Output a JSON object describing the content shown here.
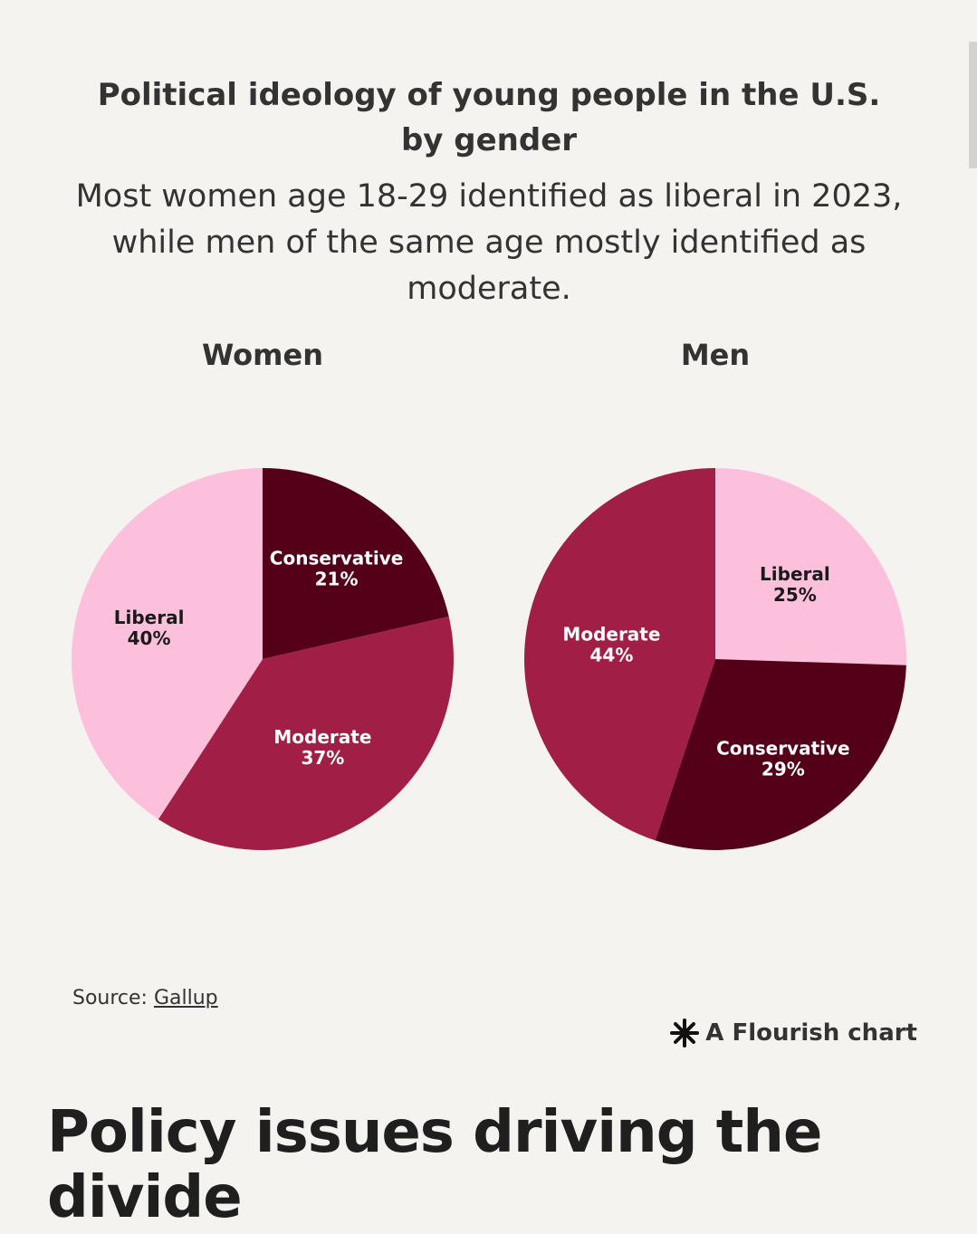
{
  "page": {
    "section_heading": "Policy issues driving the divide"
  },
  "chart_data": {
    "type": "pie",
    "title": "Political ideology of young people in the U.S. by gender",
    "subtitle": "Most women age 18-29 identified as liberal in 2023, while men of the same age mostly identified as moderate.",
    "colors": {
      "Liberal": "#fcc0dc",
      "Moderate": "#a11e46",
      "Conservative": "#540019"
    },
    "pies": [
      {
        "name": "Women",
        "slices": [
          {
            "label": "Conservative",
            "value": 21,
            "display": "21%"
          },
          {
            "label": "Moderate",
            "value": 37,
            "display": "37%"
          },
          {
            "label": "Liberal",
            "value": 40,
            "display": "40%"
          }
        ]
      },
      {
        "name": "Men",
        "slices": [
          {
            "label": "Liberal",
            "value": 25,
            "display": "25%"
          },
          {
            "label": "Conservative",
            "value": 29,
            "display": "29%"
          },
          {
            "label": "Moderate",
            "value": 44,
            "display": "44%"
          }
        ]
      }
    ]
  },
  "footer": {
    "source_prefix": "Source: ",
    "source_link": "Gallup",
    "credit": "A Flourish chart",
    "credit_icon": "flourish-asterisk-icon"
  }
}
